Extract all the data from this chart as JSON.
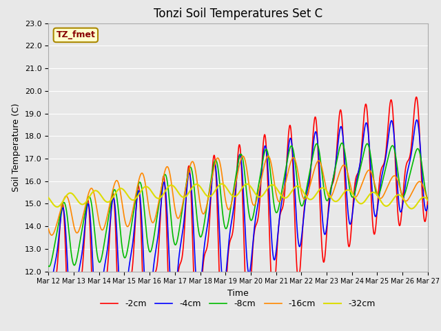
{
  "title": "Tonzi Soil Temperatures Set C",
  "xlabel": "Time",
  "ylabel": "Soil Temperature (C)",
  "ylim": [
    12.0,
    23.0
  ],
  "yticks": [
    12.0,
    13.0,
    14.0,
    15.0,
    16.0,
    17.0,
    18.0,
    19.0,
    20.0,
    21.0,
    22.0,
    23.0
  ],
  "xtick_labels": [
    "Mar 12",
    "Mar 13",
    "Mar 14",
    "Mar 15",
    "Mar 16",
    "Mar 17",
    "Mar 18",
    "Mar 19",
    "Mar 20",
    "Mar 21",
    "Mar 22",
    "Mar 23",
    "Mar 24",
    "Mar 25",
    "Mar 26",
    "Mar 27"
  ],
  "legend_labels": [
    "-2cm",
    "-4cm",
    "-8cm",
    "-16cm",
    "-32cm"
  ],
  "legend_colors": [
    "#ff0000",
    "#0000ff",
    "#00bb00",
    "#ff8800",
    "#dddd00"
  ],
  "annotation_text": "TZ_fmet",
  "annotation_facecolor": "#ffffcc",
  "annotation_edgecolor": "#aa8800",
  "annotation_textcolor": "#880000",
  "bg_color": "#e8e8e8",
  "grid_color": "#ffffff",
  "title_fontsize": 12
}
